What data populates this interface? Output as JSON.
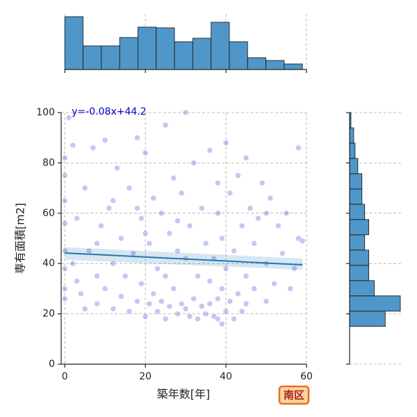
{
  "chart_data": [
    {
      "type": "scatter",
      "xlabel": "築年数[年]",
      "ylabel": "専有面積[m2]",
      "badge": "南区",
      "color": "#0000cd",
      "xlim": [
        -0.9,
        60
      ],
      "ylim": [
        0,
        100
      ],
      "xticks": [
        0,
        20,
        40,
        60
      ],
      "yticks": [
        0,
        20,
        40,
        60,
        80,
        100
      ],
      "grid": true,
      "x": [
        0,
        0,
        0,
        0,
        0,
        0,
        0,
        0,
        1,
        2,
        2,
        3,
        4,
        5,
        5,
        6,
        7,
        8,
        8,
        9,
        10,
        10,
        11,
        12,
        12,
        13,
        14,
        14,
        15,
        16,
        16,
        17,
        18,
        18,
        19,
        19,
        20,
        20,
        21,
        21,
        22,
        22,
        23,
        23,
        24,
        24,
        25,
        25,
        26,
        26,
        27,
        27,
        28,
        28,
        29,
        29,
        30,
        30,
        31,
        31,
        32,
        32,
        33,
        33,
        34,
        34,
        35,
        35,
        36,
        36,
        37,
        37,
        38,
        38,
        38,
        38,
        39,
        39,
        39,
        40,
        40,
        41,
        41,
        42,
        42,
        43,
        43,
        44,
        44,
        45,
        45,
        46,
        47,
        47,
        48,
        49,
        50,
        50,
        51,
        52,
        53,
        54,
        55,
        56,
        57,
        58,
        58,
        59,
        20,
        25,
        30,
        12,
        8,
        3,
        40,
        36,
        28,
        18,
        45,
        50
      ],
      "y": [
        82,
        75,
        56,
        45,
        38,
        30,
        26,
        65,
        98,
        87,
        40,
        33,
        28,
        70,
        22,
        45,
        86,
        35,
        24,
        55,
        89,
        30,
        62,
        40,
        22,
        78,
        50,
        27,
        35,
        70,
        21,
        44,
        90,
        25,
        58,
        32,
        84,
        19,
        48,
        24,
        66,
        28,
        38,
        21,
        60,
        25,
        95,
        18,
        52,
        23,
        74,
        30,
        45,
        20,
        68,
        24,
        100,
        22,
        55,
        19,
        80,
        26,
        35,
        18,
        62,
        23,
        48,
        20,
        85,
        24,
        42,
        19,
        72,
        26,
        18,
        60,
        30,
        16,
        50,
        88,
        21,
        68,
        25,
        45,
        18,
        75,
        28,
        55,
        21,
        82,
        35,
        62,
        30,
        48,
        58,
        72,
        25,
        40,
        66,
        32,
        55,
        44,
        60,
        30,
        38,
        86,
        50,
        49,
        52,
        35,
        42,
        65,
        48,
        58,
        38,
        33,
        57,
        62,
        24,
        60
      ],
      "regression": {
        "label": "y=-0.08x+44.2",
        "slope": -0.08,
        "intercept": 44.2,
        "color": "#1f77b4",
        "band": {
          "x": [
            0,
            59
          ],
          "lower": [
            41.5,
            37.5
          ],
          "upper": [
            46.5,
            42
          ]
        },
        "label_color": "#0000cd"
      }
    },
    {
      "type": "histogram",
      "orientation": "vertical",
      "color": "#4f97c8",
      "bins": [
        0,
        4.54,
        9.08,
        13.62,
        18.15,
        22.69,
        27.23,
        31.77,
        36.31,
        40.85,
        45.38,
        49.92,
        54.46,
        59
      ],
      "counts": [
        76,
        34,
        34,
        46,
        61,
        60,
        40,
        45,
        68,
        40,
        17,
        13,
        8
      ],
      "ylim": [
        0,
        80
      ]
    },
    {
      "type": "histogram",
      "orientation": "horizontal",
      "color": "#4f97c8",
      "bins": [
        15,
        21.07,
        27.14,
        33.21,
        39.29,
        45.36,
        51.43,
        57.5,
        63.57,
        69.64,
        75.71,
        81.79,
        87.86,
        93.93,
        100
      ],
      "counts": [
        26,
        37,
        18,
        14,
        14,
        11,
        14,
        11,
        9,
        9,
        6,
        4,
        3,
        1
      ],
      "xlim": [
        0,
        38
      ]
    }
  ]
}
